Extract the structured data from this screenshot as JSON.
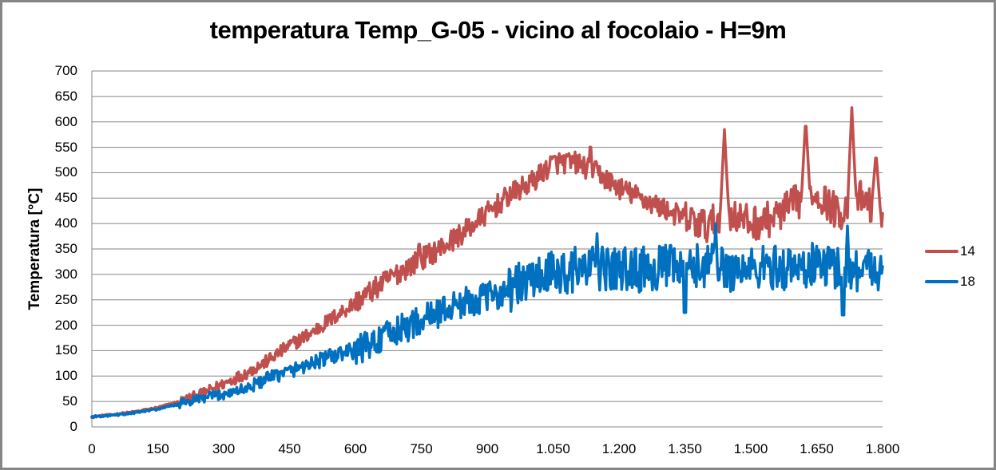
{
  "chart_data": {
    "type": "line",
    "title": "temperatura Temp_G-05 - vicino al focolaio - H=9m",
    "xlabel": "",
    "ylabel": "Temperatura [°C]",
    "xlim": [
      0,
      1800
    ],
    "ylim": [
      0,
      700
    ],
    "grid": "horizontal",
    "legend_position": "right",
    "x_ticks": [
      "0",
      "150",
      "300",
      "450",
      "600",
      "750",
      "900",
      "1.050",
      "1.200",
      "1.350",
      "1.500",
      "1.650",
      "1.800"
    ],
    "y_ticks": [
      "0",
      "50",
      "100",
      "150",
      "200",
      "250",
      "300",
      "350",
      "400",
      "450",
      "500",
      "550",
      "600",
      "650",
      "700"
    ],
    "x": [
      0,
      50,
      100,
      150,
      200,
      250,
      300,
      350,
      400,
      450,
      500,
      550,
      600,
      650,
      700,
      750,
      800,
      850,
      900,
      950,
      1000,
      1050,
      1100,
      1150,
      1200,
      1250,
      1300,
      1350,
      1400,
      1450,
      1500,
      1550,
      1600,
      1650,
      1700,
      1750,
      1800
    ],
    "series": [
      {
        "name": "14",
        "color": "#C0504D",
        "values": [
          20,
          24,
          30,
          38,
          50,
          65,
          85,
          105,
          130,
          160,
          185,
          215,
          245,
          275,
          305,
          330,
          355,
          385,
          420,
          455,
          480,
          520,
          520,
          500,
          470,
          450,
          430,
          410,
          395,
          420,
          400,
          410,
          440,
          460,
          420,
          450,
          420
        ],
        "peaks": [
          {
            "x": 745,
            "y": 370
          },
          {
            "x": 1135,
            "y": 565
          },
          {
            "x": 1440,
            "y": 585
          },
          {
            "x": 1625,
            "y": 607
          },
          {
            "x": 1730,
            "y": 628
          },
          {
            "x": 1785,
            "y": 540
          }
        ]
      },
      {
        "name": "18",
        "color": "#0070C0",
        "values": [
          20,
          23,
          28,
          35,
          45,
          55,
          65,
          75,
          95,
          110,
          125,
          140,
          150,
          170,
          190,
          210,
          230,
          245,
          255,
          270,
          290,
          300,
          310,
          310,
          310,
          310,
          315,
          310,
          320,
          310,
          310,
          315,
          310,
          320,
          315,
          310,
          315
        ],
        "peaks": [
          {
            "x": 1150,
            "y": 380
          },
          {
            "x": 1420,
            "y": 400
          },
          {
            "x": 1720,
            "y": 395
          }
        ],
        "troughs": [
          {
            "x": 1350,
            "y": 225
          },
          {
            "x": 1710,
            "y": 220
          }
        ]
      }
    ]
  },
  "legend": {
    "items": [
      {
        "label": "14",
        "color": "#C0504D"
      },
      {
        "label": "18",
        "color": "#0070C0"
      }
    ]
  }
}
